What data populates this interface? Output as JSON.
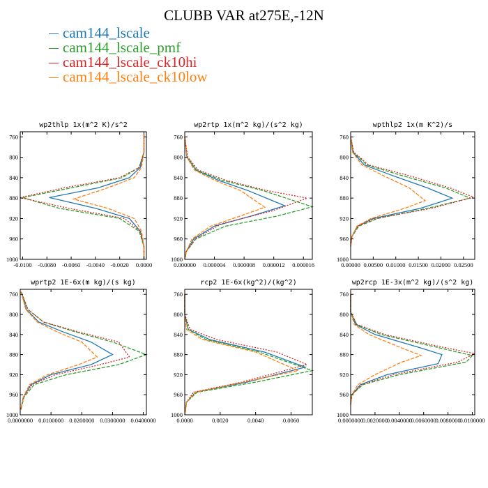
{
  "title": "CLUBB VAR at275E,-12N",
  "legend": [
    {
      "name": "cam144_lscale",
      "color": "#1f77b4"
    },
    {
      "name": "cam144_lscale_pmf",
      "color": "#2ca02c"
    },
    {
      "name": "cam144_lscale_ck10hi",
      "color": "#d62728"
    },
    {
      "name": "cam144_lscale_ck10low",
      "color": "#ff7f0e"
    }
  ],
  "chart_data": [
    {
      "type": "line",
      "title": "wp2thlp  1x(m^2 K)/s^2",
      "xlim": [
        -0.0102,
        0.0002
      ],
      "ylim": [
        1000,
        750
      ],
      "xticks": [
        "-0.0100",
        "-0.0080",
        "-0.0060",
        "-0.0040",
        "-0.0020",
        "0.0000"
      ],
      "xtick_values": [
        -0.01,
        -0.008,
        -0.006,
        -0.004,
        -0.002,
        0.0
      ],
      "yticks": [
        760,
        800,
        840,
        880,
        920,
        960,
        1000
      ],
      "series": [
        {
          "name": "cam144_lscale",
          "x": [
            0,
            0,
            -0.0003,
            -0.0012,
            -0.0038,
            -0.0078,
            -0.004,
            -0.0012,
            -0.0003,
            0,
            0
          ],
          "y": [
            755,
            790,
            820,
            840,
            860,
            879,
            900,
            920,
            945,
            975,
            1000
          ]
        },
        {
          "name": "cam144_lscale_pmf",
          "x": [
            0,
            0,
            -0.0004,
            -0.0018,
            -0.006,
            -0.01,
            -0.007,
            -0.002,
            -0.0004,
            0,
            0
          ],
          "y": [
            755,
            790,
            820,
            840,
            860,
            879,
            900,
            920,
            945,
            975,
            1000
          ]
        },
        {
          "name": "cam144_lscale_ck10hi",
          "x": [
            0,
            0,
            -0.0004,
            -0.002,
            -0.0066,
            -0.0102,
            -0.0062,
            -0.0016,
            -0.0003,
            0,
            0
          ],
          "y": [
            755,
            790,
            820,
            840,
            860,
            879,
            900,
            920,
            945,
            975,
            1000
          ]
        },
        {
          "name": "cam144_lscale_ck10low",
          "x": [
            0,
            0,
            -0.0002,
            -0.0008,
            -0.003,
            -0.0058,
            -0.003,
            -0.0008,
            -0.0002,
            0,
            0
          ],
          "y": [
            755,
            790,
            820,
            840,
            860,
            882,
            900,
            920,
            945,
            975,
            1000
          ]
        }
      ]
    },
    {
      "type": "line",
      "title": "wp2rtp  1x(m^2 kg)/(s^2 kg)",
      "xlim": [
        0,
        1.72e-05
      ],
      "ylim": [
        1000,
        750
      ],
      "xticks": [
        "0.000000",
        "0.000004",
        "0.000008",
        "0.000012",
        "0.000016"
      ],
      "xtick_values": [
        0,
        4e-06,
        8e-06,
        1.2e-05,
        1.6e-05
      ],
      "yticks": [
        760,
        800,
        840,
        880,
        920,
        960,
        1000
      ],
      "series": [
        {
          "name": "cam144_lscale",
          "x": [
            0,
            3e-07,
            1.5e-06,
            4.5e-06,
            8.5e-06,
            1.35e-05,
            9e-06,
            4e-06,
            1.2e-06,
            2e-07,
            0
          ],
          "y": [
            760,
            800,
            825,
            845,
            865,
            895,
            915,
            935,
            960,
            985,
            1000
          ]
        },
        {
          "name": "cam144_lscale_pmf",
          "x": [
            0,
            3e-07,
            1.6e-06,
            5e-06,
            1.05e-05,
            1.72e-05,
            1.25e-05,
            5.5e-06,
            1.5e-06,
            2e-07,
            0
          ],
          "y": [
            760,
            800,
            825,
            845,
            865,
            897,
            915,
            935,
            960,
            985,
            1000
          ]
        },
        {
          "name": "cam144_lscale_ck10hi",
          "x": [
            0,
            4e-07,
            1.8e-06,
            5.5e-06,
            1.1e-05,
            1.65e-05,
            1.18e-05,
            5e-06,
            1.4e-06,
            2e-07,
            0
          ],
          "y": [
            760,
            800,
            825,
            845,
            865,
            880,
            905,
            930,
            960,
            985,
            1000
          ]
        },
        {
          "name": "cam144_lscale_ck10low",
          "x": [
            0,
            3e-07,
            1.3e-06,
            4e-06,
            7.5e-06,
            1.08e-05,
            7.5e-06,
            3.5e-06,
            1e-06,
            2e-07,
            0
          ],
          "y": [
            760,
            800,
            825,
            845,
            865,
            898,
            915,
            935,
            960,
            985,
            1000
          ]
        }
      ]
    },
    {
      "type": "line",
      "title": "wpthlp2  1x(m K^2)/s",
      "xlim": [
        0,
        0.0275
      ],
      "ylim": [
        1000,
        750
      ],
      "xticks": [
        "0.00000",
        "0.00500",
        "0.01000",
        "0.01500",
        "0.02000",
        "0.02500"
      ],
      "xtick_values": [
        0,
        0.005,
        0.01,
        0.015,
        0.02,
        0.025
      ],
      "yticks": [
        760,
        800,
        840,
        880,
        920,
        960,
        1000
      ],
      "series": [
        {
          "name": "cam144_lscale",
          "x": [
            0,
            0.0005,
            0.003,
            0.009,
            0.017,
            0.0225,
            0.0155,
            0.005,
            0.0015,
            0.0003,
            0
          ],
          "y": [
            760,
            790,
            815,
            835,
            860,
            880,
            900,
            920,
            935,
            955,
            975
          ]
        },
        {
          "name": "cam144_lscale_pmf",
          "x": [
            0,
            0.0006,
            0.0036,
            0.011,
            0.021,
            0.0265,
            0.017,
            0.006,
            0.0018,
            0.0003,
            0
          ],
          "y": [
            760,
            790,
            815,
            835,
            860,
            880,
            900,
            920,
            935,
            955,
            975
          ]
        },
        {
          "name": "cam144_lscale_ck10hi",
          "x": [
            0,
            0.0007,
            0.004,
            0.0125,
            0.022,
            0.0272,
            0.018,
            0.0055,
            0.0016,
            0.0003,
            0
          ],
          "y": [
            760,
            790,
            815,
            835,
            860,
            878,
            900,
            920,
            935,
            955,
            975
          ]
        },
        {
          "name": "cam144_lscale_ck10low",
          "x": [
            0,
            0.0004,
            0.0025,
            0.007,
            0.013,
            0.0165,
            0.012,
            0.0045,
            0.0014,
            0.0003,
            0
          ],
          "y": [
            760,
            790,
            815,
            835,
            860,
            885,
            900,
            920,
            935,
            955,
            975
          ]
        }
      ]
    },
    {
      "type": "line",
      "title": "wprtp2  1E-6x(m kg)/(s kg)",
      "xlim": [
        0,
        0.041
      ],
      "ylim": [
        1000,
        750
      ],
      "xticks": [
        "0.0000000",
        "0.0100000",
        "0.0200000",
        "0.0300000",
        "0.0400000"
      ],
      "xtick_values": [
        0,
        0.01,
        0.02,
        0.03,
        0.04
      ],
      "yticks": [
        760,
        800,
        840,
        880,
        920,
        960,
        1000
      ],
      "series": [
        {
          "name": "cam144_lscale",
          "x": [
            0.0003,
            0.002,
            0.006,
            0.014,
            0.023,
            0.03,
            0.023,
            0.01,
            0.0035,
            0.001,
            0.0002
          ],
          "y": [
            755,
            790,
            815,
            835,
            855,
            880,
            900,
            920,
            940,
            965,
            990
          ]
        },
        {
          "name": "cam144_lscale_pmf",
          "x": [
            0.0003,
            0.0025,
            0.0075,
            0.018,
            0.03,
            0.041,
            0.032,
            0.015,
            0.0045,
            0.0012,
            0.0002
          ],
          "y": [
            755,
            790,
            815,
            835,
            855,
            880,
            900,
            920,
            940,
            965,
            990
          ]
        },
        {
          "name": "cam144_lscale_ck10hi",
          "x": [
            0.0003,
            0.0025,
            0.0075,
            0.019,
            0.032,
            0.0355,
            0.026,
            0.0115,
            0.0038,
            0.001,
            0.0002
          ],
          "y": [
            755,
            790,
            815,
            835,
            855,
            885,
            900,
            920,
            940,
            965,
            990
          ]
        },
        {
          "name": "cam144_lscale_ck10low",
          "x": [
            0.0003,
            0.0018,
            0.0055,
            0.012,
            0.02,
            0.025,
            0.019,
            0.009,
            0.003,
            0.001,
            0.0002
          ],
          "y": [
            755,
            790,
            815,
            835,
            855,
            885,
            900,
            920,
            940,
            965,
            990
          ]
        }
      ]
    },
    {
      "type": "line",
      "title": "rcp2  1E-6x(kg^2)/(kg^2)",
      "xlim": [
        0,
        0.0072
      ],
      "ylim": [
        1000,
        750
      ],
      "xticks": [
        "0.0000",
        "0.0020",
        "0.0040",
        "0.0060"
      ],
      "xtick_values": [
        0,
        0.002,
        0.004,
        0.006
      ],
      "yticks": [
        760,
        800,
        840,
        880,
        920,
        960,
        1000
      ],
      "series": [
        {
          "name": "cam144_lscale",
          "x": [
            0,
            0,
            0.0002,
            0.0014,
            0.0045,
            0.0068,
            0.0035,
            0.0006,
            0.0001,
            0
          ],
          "y": [
            760,
            800,
            830,
            850,
            875,
            905,
            935,
            955,
            975,
            1000
          ]
        },
        {
          "name": "cam144_lscale_pmf",
          "x": [
            0,
            0,
            0.0002,
            0.0012,
            0.0042,
            0.0072,
            0.004,
            0.0007,
            0.0001,
            0
          ],
          "y": [
            760,
            800,
            830,
            850,
            875,
            912,
            935,
            955,
            975,
            1000
          ]
        },
        {
          "name": "cam144_lscale_ck10hi",
          "x": [
            0,
            0,
            0.0003,
            0.0018,
            0.0052,
            0.0069,
            0.0032,
            0.0005,
            0.0001,
            0
          ],
          "y": [
            760,
            800,
            830,
            850,
            875,
            900,
            935,
            955,
            975,
            1000
          ]
        },
        {
          "name": "cam144_lscale_ck10low",
          "x": [
            0,
            0,
            0.0001,
            0.001,
            0.004,
            0.0064,
            0.0033,
            0.0006,
            0.0001,
            0
          ],
          "y": [
            760,
            800,
            830,
            850,
            875,
            912,
            935,
            955,
            975,
            1000
          ]
        }
      ]
    },
    {
      "type": "line",
      "title": "wp2rcp  1E-3x(m^2 kg)/(s^2 kg)",
      "xlim": [
        0,
        0.0102
      ],
      "ylim": [
        1000,
        750
      ],
      "xticks": [
        "0.0000000",
        "0.0020000",
        "0.0040000",
        "0.0060000",
        "0.0080000",
        "0.0100000"
      ],
      "xtick_values": [
        0,
        0.002,
        0.004,
        0.006,
        0.008,
        0.01
      ],
      "yticks": [
        760,
        800,
        840,
        880,
        920,
        960,
        1000
      ],
      "series": [
        {
          "name": "cam144_lscale",
          "x": [
            0,
            0,
            0.0004,
            0.002,
            0.0055,
            0.0075,
            0.0072,
            0.003,
            0.0008,
            0.0001,
            0
          ],
          "y": [
            760,
            795,
            820,
            840,
            865,
            880,
            898,
            920,
            940,
            960,
            980
          ]
        },
        {
          "name": "cam144_lscale_pmf",
          "x": [
            0,
            0,
            0.0005,
            0.0025,
            0.007,
            0.01,
            0.0095,
            0.004,
            0.001,
            0.0001,
            0
          ],
          "y": [
            760,
            795,
            820,
            840,
            865,
            882,
            895,
            920,
            940,
            960,
            980
          ]
        },
        {
          "name": "cam144_lscale_ck10hi",
          "x": [
            0,
            0,
            0.0005,
            0.0028,
            0.0075,
            0.0102,
            0.0088,
            0.0035,
            0.0009,
            0.0001,
            0
          ],
          "y": [
            760,
            795,
            820,
            840,
            865,
            878,
            895,
            920,
            940,
            960,
            980
          ]
        },
        {
          "name": "cam144_lscale_ck10low",
          "x": [
            0,
            0,
            0.0003,
            0.0015,
            0.004,
            0.0058,
            0.0042,
            0.002,
            0.0006,
            0.0001,
            0
          ],
          "y": [
            760,
            795,
            820,
            840,
            865,
            882,
            895,
            920,
            940,
            960,
            980
          ]
        }
      ]
    }
  ]
}
